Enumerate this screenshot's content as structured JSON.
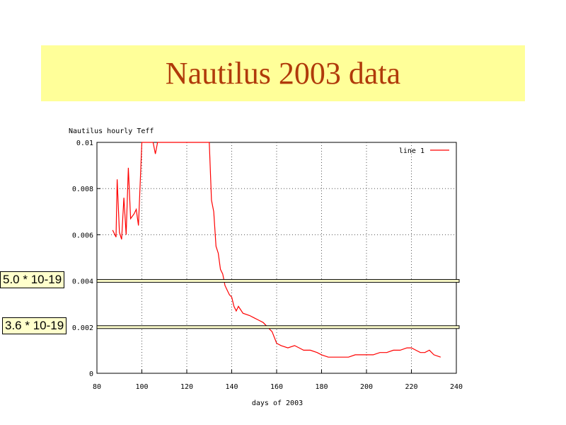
{
  "slide": {
    "title": "Nautilus 2003 data",
    "banner_color": "#ffff99",
    "title_color": "#b03a0a"
  },
  "chart_data": {
    "type": "line",
    "title": "Nautilus hourly Teff",
    "xlabel": "days of 2003",
    "ylabel": "",
    "xlim": [
      80,
      240
    ],
    "ylim": [
      0,
      0.01
    ],
    "x_ticks": [
      "80",
      "100",
      "120",
      "140",
      "160",
      "180",
      "200",
      "220",
      "240"
    ],
    "y_ticks": [
      "0",
      "0.002",
      "0.004",
      "0.006",
      "0.008",
      "0.01"
    ],
    "grid": true,
    "legend": {
      "position": "top-right",
      "entries": [
        "line 1"
      ]
    },
    "series": [
      {
        "name": "line 1",
        "color": "#ff0000",
        "x": [
          87.0,
          88.5,
          89.0,
          90.0,
          91.0,
          92.0,
          93.0,
          94.0,
          95.0,
          96.5,
          97.5,
          98.5,
          100,
          103,
          105,
          106,
          107,
          110,
          115,
          120,
          122,
          125,
          128,
          130,
          131,
          132,
          133,
          134,
          135,
          136,
          137,
          138,
          139,
          140,
          141,
          142,
          143,
          145,
          148,
          150,
          152,
          154,
          156,
          158,
          160,
          162,
          165,
          168,
          170,
          172,
          175,
          178,
          180,
          183,
          186,
          189,
          192,
          195,
          198,
          200,
          203,
          206,
          209,
          212,
          215,
          218,
          220,
          222,
          224,
          226,
          228,
          230,
          233
        ],
        "values": [
          0.0062,
          0.0059,
          0.0084,
          0.0061,
          0.0058,
          0.0076,
          0.006,
          0.0089,
          0.0067,
          0.0069,
          0.0071,
          0.0064,
          0.01,
          0.01,
          0.01,
          0.0095,
          0.01,
          0.01,
          0.01,
          0.01,
          0.01,
          0.01,
          0.01,
          0.01,
          0.0075,
          0.007,
          0.0055,
          0.0052,
          0.0045,
          0.0043,
          0.0038,
          0.0036,
          0.0034,
          0.0033,
          0.0029,
          0.0027,
          0.0029,
          0.0026,
          0.0025,
          0.0024,
          0.0023,
          0.0022,
          0.002,
          0.0018,
          0.0013,
          0.0012,
          0.0011,
          0.0012,
          0.0011,
          0.001,
          0.001,
          0.0009,
          0.0008,
          0.0007,
          0.0007,
          0.0007,
          0.0007,
          0.0008,
          0.0008,
          0.0008,
          0.0008,
          0.0009,
          0.0009,
          0.001,
          0.001,
          0.0011,
          0.0011,
          0.001,
          0.0009,
          0.0009,
          0.001,
          0.0008,
          0.0007
        ]
      }
    ]
  },
  "annotations": [
    {
      "label": "5.0 * 10-19",
      "y_value": 0.004
    },
    {
      "label": "3.6 * 10-19",
      "y_value": 0.002
    }
  ]
}
